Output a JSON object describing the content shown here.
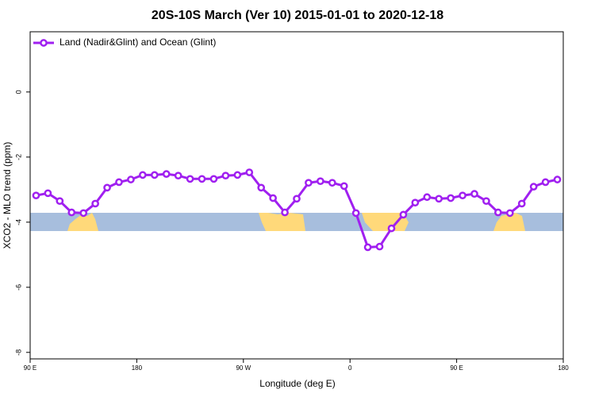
{
  "chart_data": {
    "type": "line",
    "title": "20S-10S March (Ver 10)   2015-01-01 to 2020-12-18",
    "x_label": "Longitude (deg E)",
    "y_label": "XCO2 - MLO trend (ppm)",
    "x": [
      95,
      105,
      115,
      125,
      135,
      145,
      155,
      165,
      175,
      185,
      195,
      205,
      215,
      225,
      235,
      245,
      255,
      265,
      275,
      285,
      295,
      305,
      315,
      325,
      335,
      345,
      355,
      365,
      375,
      385,
      395,
      405,
      415,
      425,
      435,
      445,
      455,
      465,
      475,
      485,
      495,
      505,
      515,
      525,
      535
    ],
    "series": [
      {
        "name": "Land (Nadir&Glint) and Ocean (Glint)",
        "color": "#a020f0",
        "values": [
          -3.18,
          -3.11,
          -3.35,
          -3.7,
          -3.72,
          -3.43,
          -2.94,
          -2.77,
          -2.69,
          -2.55,
          -2.55,
          -2.52,
          -2.57,
          -2.67,
          -2.67,
          -2.67,
          -2.57,
          -2.55,
          -2.47,
          -2.94,
          -3.26,
          -3.7,
          -3.28,
          -2.79,
          -2.74,
          -2.79,
          -2.89,
          -3.72,
          -4.77,
          -4.75,
          -4.19,
          -3.77,
          -3.4,
          -3.23,
          -3.28,
          -3.26,
          -3.18,
          -3.13,
          -3.35,
          -3.7,
          -3.72,
          -3.43,
          -2.91,
          -2.77,
          -2.69
        ]
      }
    ],
    "xlim": [
      90,
      540
    ],
    "xticks": [
      {
        "value": 90,
        "label": "90 E"
      },
      180,
      {
        "value": 270,
        "label": "90 W"
      },
      {
        "value": 360,
        "label": "0"
      },
      {
        "value": 450,
        "label": "90 E"
      },
      {
        "value": 540,
        "label": "180"
      }
    ],
    "ylim": [
      -8.2,
      1.85
    ],
    "yticks": [
      0,
      -2,
      -4,
      -6,
      -8
    ],
    "legend": "top-left"
  }
}
